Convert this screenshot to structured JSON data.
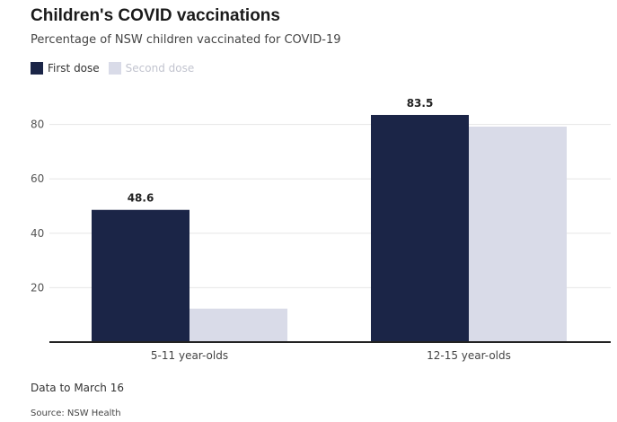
{
  "chart_data": {
    "type": "bar",
    "title": "Children's COVID vaccinations",
    "subtitle": "Percentage of NSW children vaccinated for COVID-19",
    "categories": [
      "5-11 year-olds",
      "12-15 year-olds"
    ],
    "series": [
      {
        "name": "First dose",
        "values": [
          48.6,
          83.5
        ],
        "color": "#1b2547",
        "labels": [
          "48.6",
          "83.5"
        ]
      },
      {
        "name": "Second dose",
        "values": [
          12.3,
          79.2
        ],
        "color": "#d9dbe8",
        "labels": [
          "",
          ""
        ]
      }
    ],
    "yticks": [
      20,
      40,
      60,
      80
    ],
    "ylim": [
      0,
      90
    ],
    "grid": true,
    "legend_position": "top-left",
    "note": "Data to March 16",
    "source": "Source: NSW Health"
  }
}
